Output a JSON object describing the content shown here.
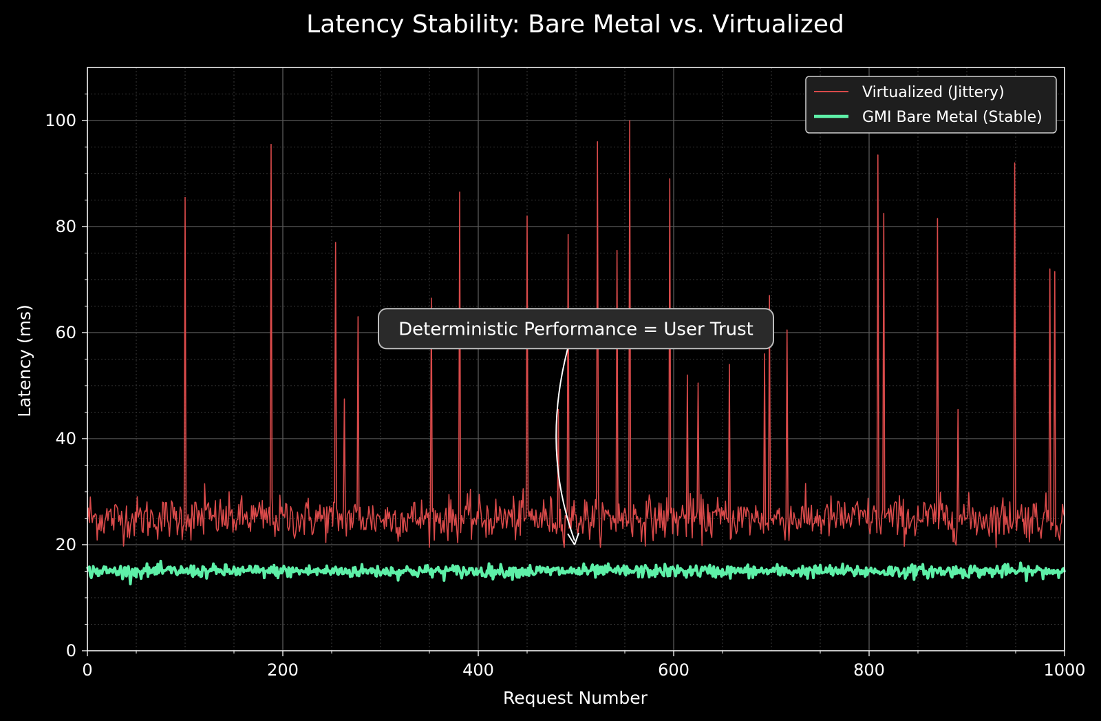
{
  "chart_data": {
    "type": "line",
    "title": "Latency Stability: Bare Metal vs. Virtualized",
    "xlabel": "Request Number",
    "ylabel": "Latency (ms)",
    "xlim": [
      0,
      1000
    ],
    "ylim": [
      0,
      110
    ],
    "xticks": [
      0,
      200,
      400,
      600,
      800,
      1000
    ],
    "yticks": [
      0,
      20,
      40,
      60,
      80,
      100
    ],
    "grid": true,
    "legend_position": "top-right",
    "series": [
      {
        "name": "Virtualized (Jittery)",
        "color": "#d94a4a",
        "baseline_mean": 25,
        "baseline_noise": 2,
        "spikes": [
          [
            3,
            29
          ],
          [
            100,
            85.5
          ],
          [
            120,
            31.5
          ],
          [
            188,
            95.5
          ],
          [
            254,
            77
          ],
          [
            263,
            47.5
          ],
          [
            277,
            63
          ],
          [
            352,
            66.5
          ],
          [
            381,
            86.5
          ],
          [
            450,
            82
          ],
          [
            482,
            45.5
          ],
          [
            492,
            78.5
          ],
          [
            522,
            96
          ],
          [
            542,
            75.5
          ],
          [
            555,
            100
          ],
          [
            596,
            89
          ],
          [
            614,
            52
          ],
          [
            625,
            50.5
          ],
          [
            657,
            54
          ],
          [
            693,
            56
          ],
          [
            698,
            67
          ],
          [
            716,
            60.5
          ],
          [
            809,
            93.5
          ],
          [
            815,
            82.5
          ],
          [
            870,
            81.5
          ],
          [
            891,
            45.5
          ],
          [
            949,
            92
          ],
          [
            985,
            72
          ],
          [
            990,
            71.5
          ]
        ]
      },
      {
        "name": "GMI Bare Metal (Stable)",
        "color": "#5ef0a8",
        "baseline_mean": 15,
        "baseline_noise": 0.6
      }
    ],
    "annotations": [
      {
        "text": "Deterministic Performance = User Trust",
        "box_at": [
          500,
          61
        ],
        "arrow_to": [
          500,
          20
        ]
      }
    ]
  }
}
